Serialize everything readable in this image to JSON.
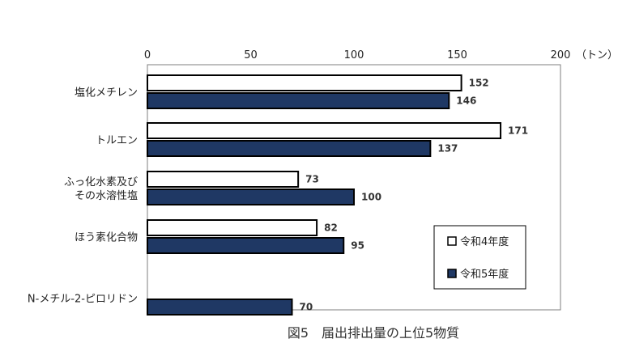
{
  "chart_data": {
    "type": "bar",
    "orientation": "horizontal",
    "title": "図5　届出排出量の上位5物質",
    "unit": "（トン）",
    "xlim": [
      0,
      200
    ],
    "ticks": [
      0,
      50,
      100,
      150,
      200
    ],
    "tick_labels": [
      "0",
      "50",
      "100",
      "150",
      "200"
    ],
    "categories": [
      [
        "塩化メチレン"
      ],
      [
        "トルエン"
      ],
      [
        "ふっ化水素及び",
        "その水溶性塩"
      ],
      [
        "ほう素化合物"
      ],
      [
        "N-メチル-2-ピロリドン"
      ]
    ],
    "series": [
      {
        "name": "令和4年度",
        "values": [
          152,
          171,
          73,
          82,
          null
        ],
        "value_labels": [
          "152",
          "171",
          "73",
          "82",
          ""
        ],
        "color": "#ffffff",
        "stroke": "#000000"
      },
      {
        "name": "令和5年度",
        "values": [
          146,
          137,
          100,
          95,
          70
        ],
        "value_labels": [
          "146",
          "137",
          "100",
          "95",
          "70"
        ],
        "color": "#1f3864",
        "stroke": "#000000"
      }
    ],
    "legend_position": "bottom-right",
    "grid": false
  }
}
